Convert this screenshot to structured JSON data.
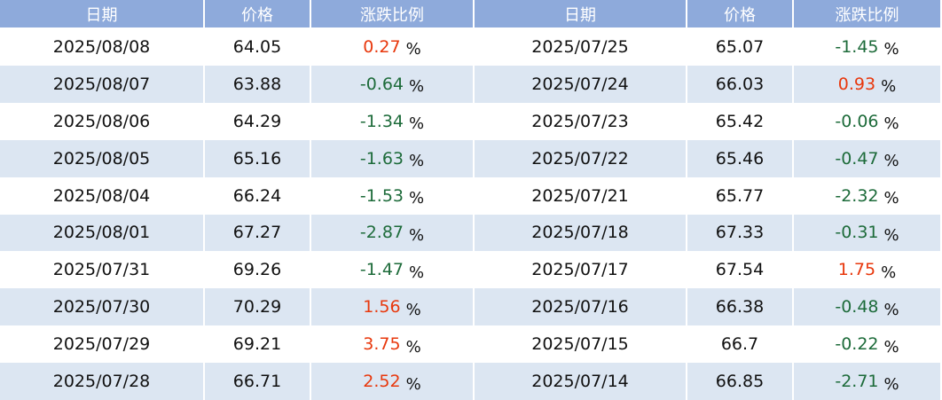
{
  "tables": [
    {
      "header": [
        "日期",
        "价格",
        "涨跌比例"
      ],
      "rows": [
        [
          "2025/08/08",
          "64.05",
          "0.27"
        ],
        [
          "2025/08/07",
          "63.88",
          "-0.64"
        ],
        [
          "2025/08/06",
          "64.29",
          "-1.34"
        ],
        [
          "2025/08/05",
          "65.16",
          "-1.63"
        ],
        [
          "2025/08/04",
          "66.24",
          "-1.53"
        ],
        [
          "2025/08/01",
          "67.27",
          "-2.87"
        ],
        [
          "2025/07/31",
          "69.26",
          "-1.47"
        ],
        [
          "2025/07/30",
          "70.29",
          "1.56"
        ],
        [
          "2025/07/29",
          "69.21",
          "3.75"
        ],
        [
          "2025/07/28",
          "66.71",
          "2.52"
        ]
      ]
    },
    {
      "header": [
        "日期",
        "价格",
        "涨跌比例"
      ],
      "rows": [
        [
          "2025/07/25",
          "65.07",
          "-1.45"
        ],
        [
          "2025/07/24",
          "66.03",
          "0.93"
        ],
        [
          "2025/07/23",
          "65.42",
          "-0.06"
        ],
        [
          "2025/07/22",
          "65.46",
          "-0.47"
        ],
        [
          "2025/07/21",
          "65.77",
          "-2.32"
        ],
        [
          "2025/07/18",
          "67.33",
          "-0.31"
        ],
        [
          "2025/07/17",
          "67.54",
          "1.75"
        ],
        [
          "2025/07/16",
          "66.38",
          "-0.48"
        ],
        [
          "2025/07/15",
          "66.7",
          "-0.22"
        ],
        [
          "2025/07/14",
          "66.85",
          "-2.71"
        ]
      ]
    }
  ],
  "percent_sign": "%",
  "colors": {
    "up": "#e8380d",
    "down": "#1d6b3a"
  }
}
